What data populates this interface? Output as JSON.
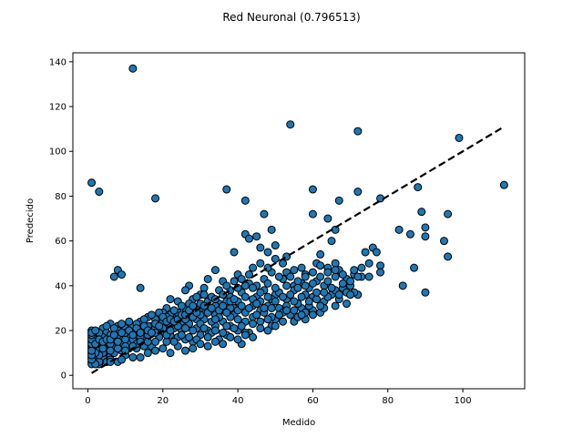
{
  "chart_data": {
    "type": "scatter",
    "title": "Red Neuronal (0.796513)",
    "xlabel": "Medido",
    "ylabel": "Predecido",
    "xlim": [
      -4,
      116.5
    ],
    "ylim": [
      -6,
      144
    ],
    "xticks": [
      0,
      20,
      40,
      60,
      80,
      100
    ],
    "yticks": [
      0,
      20,
      40,
      60,
      80,
      100,
      120,
      140
    ],
    "grid": false,
    "marker_color": "#1f77b4",
    "marker_edge": "#000000",
    "line_color": "#000000",
    "reference_line": {
      "x": [
        1,
        111
      ],
      "y": [
        1,
        111
      ],
      "style": "dashed"
    },
    "points": [
      [
        12,
        137
      ],
      [
        54,
        112
      ],
      [
        72,
        109
      ],
      [
        99,
        106
      ],
      [
        111,
        85
      ],
      [
        1,
        86
      ],
      [
        3,
        82
      ],
      [
        18,
        79
      ],
      [
        37,
        83
      ],
      [
        42,
        78
      ],
      [
        60,
        83
      ],
      [
        72,
        82
      ],
      [
        67,
        78
      ],
      [
        78,
        79
      ],
      [
        88,
        84
      ],
      [
        96,
        72
      ],
      [
        89,
        73
      ],
      [
        90,
        66
      ],
      [
        86,
        63
      ],
      [
        90,
        62
      ],
      [
        83,
        65
      ],
      [
        95,
        60
      ],
      [
        96,
        53
      ],
      [
        87,
        48
      ],
      [
        90,
        37
      ],
      [
        84,
        40
      ],
      [
        78,
        49
      ],
      [
        78,
        46
      ],
      [
        76,
        57
      ],
      [
        77,
        55
      ],
      [
        74,
        55
      ],
      [
        73,
        44
      ],
      [
        75,
        44
      ],
      [
        72,
        36
      ],
      [
        71,
        45
      ],
      [
        66,
        65
      ],
      [
        65,
        60
      ],
      [
        60,
        72
      ],
      [
        64,
        70
      ],
      [
        47,
        72
      ],
      [
        45,
        62
      ],
      [
        49,
        65
      ],
      [
        42,
        63
      ],
      [
        43,
        61
      ],
      [
        39,
        55
      ],
      [
        53,
        53
      ],
      [
        57,
        48
      ],
      [
        62,
        54
      ],
      [
        66,
        50
      ],
      [
        8,
        47
      ],
      [
        7,
        44
      ],
      [
        9,
        45
      ],
      [
        14,
        39
      ],
      [
        46,
        57
      ],
      [
        48,
        55
      ],
      [
        50,
        58
      ],
      [
        55,
        47
      ],
      [
        58,
        45
      ],
      [
        61,
        50
      ],
      [
        64,
        48
      ],
      [
        67,
        47
      ],
      [
        69,
        43
      ],
      [
        70,
        40
      ],
      [
        52,
        43
      ],
      [
        55,
        40
      ],
      [
        58,
        36
      ],
      [
        60,
        35
      ],
      [
        63,
        33
      ],
      [
        66,
        31
      ],
      [
        68,
        39
      ],
      [
        62,
        28
      ],
      [
        57,
        30
      ],
      [
        54,
        27
      ],
      [
        50,
        25
      ],
      [
        60,
        29
      ],
      [
        48,
        31
      ],
      [
        45,
        35
      ],
      [
        43,
        41
      ],
      [
        40,
        45
      ],
      [
        38,
        38
      ],
      [
        36,
        42
      ],
      [
        34,
        47
      ],
      [
        32,
        43
      ],
      [
        31,
        39
      ],
      [
        30,
        36
      ],
      [
        28,
        34
      ],
      [
        27,
        40
      ],
      [
        26,
        38
      ],
      [
        24,
        33
      ],
      [
        22,
        34
      ],
      [
        21,
        30
      ],
      [
        20,
        28
      ],
      [
        35,
        32
      ],
      [
        41,
        37
      ],
      [
        44,
        34
      ],
      [
        47,
        38
      ],
      [
        50,
        36
      ],
      [
        53,
        34
      ],
      [
        56,
        32
      ],
      [
        46,
        29
      ],
      [
        49,
        26
      ],
      [
        42,
        28
      ],
      [
        39,
        30
      ],
      [
        37,
        33
      ],
      [
        34,
        27
      ],
      [
        31,
        29
      ],
      [
        29,
        25
      ],
      [
        27,
        27
      ],
      [
        25,
        24
      ],
      [
        23,
        26
      ],
      [
        21,
        22
      ],
      [
        19,
        24
      ],
      [
        17,
        22
      ],
      [
        15,
        20
      ],
      [
        13,
        19
      ],
      [
        11,
        18
      ],
      [
        9,
        17
      ],
      [
        7,
        16
      ],
      [
        5,
        15
      ],
      [
        3,
        14
      ],
      [
        2,
        12
      ],
      [
        1,
        10
      ],
      [
        1,
        8
      ],
      [
        1,
        6
      ],
      [
        2,
        18
      ],
      [
        1,
        20
      ],
      [
        3,
        17
      ],
      [
        4,
        21
      ],
      [
        5,
        19
      ],
      [
        6,
        23
      ],
      [
        8,
        22
      ],
      [
        10,
        21
      ],
      [
        12,
        20
      ],
      [
        14,
        24
      ],
      [
        16,
        26
      ],
      [
        18,
        25
      ],
      [
        20,
        19
      ],
      [
        22,
        18
      ],
      [
        24,
        17
      ],
      [
        26,
        16
      ],
      [
        28,
        15
      ],
      [
        30,
        18
      ],
      [
        32,
        20
      ],
      [
        34,
        22
      ],
      [
        36,
        24
      ],
      [
        38,
        22
      ],
      [
        40,
        20
      ],
      [
        42,
        24
      ],
      [
        44,
        26
      ],
      [
        33,
        19
      ],
      [
        29,
        21
      ],
      [
        25,
        20
      ],
      [
        21,
        15
      ],
      [
        17,
        13
      ],
      [
        13,
        12
      ],
      [
        9,
        11
      ],
      [
        6,
        9
      ],
      [
        4,
        8
      ],
      [
        2,
        7
      ],
      [
        7,
        13
      ],
      [
        11,
        14
      ],
      [
        15,
        16
      ],
      [
        19,
        17
      ],
      [
        23,
        21
      ],
      [
        27,
        23
      ],
      [
        31,
        25
      ],
      [
        35,
        26
      ],
      [
        39,
        27
      ],
      [
        43,
        19
      ],
      [
        37,
        18
      ],
      [
        41,
        14
      ],
      [
        35,
        16
      ],
      [
        16,
        10
      ],
      [
        20,
        12
      ],
      [
        24,
        13
      ],
      [
        28,
        12
      ],
      [
        10,
        9
      ],
      [
        14,
        8
      ],
      [
        8,
        6
      ],
      [
        5,
        6
      ],
      [
        3,
        5
      ],
      [
        1,
        5
      ],
      [
        1,
        13
      ],
      [
        1,
        15
      ],
      [
        1,
        17
      ],
      [
        2,
        15
      ],
      [
        3,
        11
      ],
      [
        4,
        13
      ],
      [
        5,
        11
      ],
      [
        6,
        14
      ],
      [
        7,
        10
      ],
      [
        8,
        18
      ],
      [
        9,
        14
      ],
      [
        10,
        16
      ],
      [
        11,
        12
      ],
      [
        12,
        16
      ],
      [
        13,
        14
      ],
      [
        14,
        17
      ],
      [
        15,
        13
      ],
      [
        16,
        18
      ],
      [
        18,
        15
      ],
      [
        19,
        20
      ],
      [
        21,
        18
      ],
      [
        22,
        23
      ],
      [
        23,
        15
      ],
      [
        25,
        18
      ],
      [
        26,
        21
      ],
      [
        27,
        17
      ],
      [
        28,
        20
      ],
      [
        29,
        16
      ],
      [
        30,
        23
      ],
      [
        31,
        21
      ],
      [
        32,
        17
      ],
      [
        33,
        24
      ],
      [
        34,
        20
      ],
      [
        36,
        19
      ],
      [
        37,
        22
      ],
      [
        38,
        26
      ],
      [
        39,
        21
      ],
      [
        40,
        25
      ],
      [
        41,
        22
      ],
      [
        42,
        19
      ],
      [
        44,
        23
      ],
      [
        45,
        27
      ],
      [
        46,
        24
      ],
      [
        47,
        28
      ],
      [
        48,
        25
      ],
      [
        49,
        22
      ],
      [
        51,
        30
      ],
      [
        52,
        28
      ],
      [
        53,
        31
      ],
      [
        55,
        33
      ],
      [
        57,
        35
      ],
      [
        59,
        31
      ],
      [
        61,
        34
      ],
      [
        63,
        30
      ],
      [
        65,
        36
      ],
      [
        67,
        34
      ],
      [
        69,
        32
      ],
      [
        71,
        37
      ],
      [
        49,
        34
      ],
      [
        51,
        37
      ],
      [
        53,
        40
      ],
      [
        55,
        38
      ],
      [
        57,
        41
      ],
      [
        59,
        39
      ],
      [
        61,
        42
      ],
      [
        63,
        40
      ],
      [
        45,
        40
      ],
      [
        47,
        43
      ],
      [
        49,
        46
      ],
      [
        51,
        44
      ],
      [
        53,
        46
      ],
      [
        44,
        31
      ],
      [
        46,
        33
      ],
      [
        48,
        41
      ],
      [
        50,
        39
      ],
      [
        42,
        35
      ],
      [
        40,
        33
      ],
      [
        38,
        30
      ],
      [
        36,
        29
      ],
      [
        34,
        31
      ],
      [
        32,
        33
      ],
      [
        30,
        30
      ],
      [
        28,
        29
      ],
      [
        26,
        30
      ],
      [
        24,
        28
      ],
      [
        22,
        27
      ],
      [
        20,
        24
      ],
      [
        18,
        21
      ],
      [
        16,
        22
      ],
      [
        14,
        21
      ],
      [
        12,
        22
      ],
      [
        10,
        19
      ],
      [
        8,
        20
      ],
      [
        6,
        18
      ],
      [
        4,
        17
      ],
      [
        2,
        16
      ],
      [
        1,
        12
      ],
      [
        2,
        9
      ],
      [
        3,
        19
      ],
      [
        4,
        10
      ],
      [
        5,
        22
      ],
      [
        6,
        7
      ],
      [
        7,
        21
      ],
      [
        9,
        23
      ],
      [
        11,
        24
      ],
      [
        13,
        23
      ],
      [
        15,
        25
      ],
      [
        17,
        27
      ],
      [
        19,
        28
      ],
      [
        21,
        26
      ],
      [
        23,
        29
      ],
      [
        25,
        31
      ],
      [
        27,
        32
      ],
      [
        29,
        35
      ],
      [
        31,
        36
      ],
      [
        33,
        35
      ],
      [
        35,
        38
      ],
      [
        37,
        40
      ],
      [
        39,
        42
      ],
      [
        41,
        43
      ],
      [
        43,
        45
      ],
      [
        44,
        48
      ],
      [
        46,
        50
      ],
      [
        48,
        48
      ],
      [
        50,
        52
      ],
      [
        52,
        50
      ],
      [
        54,
        44
      ],
      [
        56,
        42
      ],
      [
        58,
        44
      ],
      [
        60,
        46
      ],
      [
        62,
        44
      ],
      [
        64,
        42
      ],
      [
        66,
        44
      ],
      [
        68,
        45
      ],
      [
        55,
        24
      ],
      [
        58,
        25
      ],
      [
        60,
        27
      ],
      [
        46,
        21
      ],
      [
        44,
        17
      ],
      [
        40,
        16
      ],
      [
        36,
        14
      ],
      [
        32,
        13
      ],
      [
        26,
        11
      ],
      [
        22,
        10
      ],
      [
        18,
        11
      ],
      [
        12,
        8
      ],
      [
        9,
        7
      ],
      [
        6,
        6
      ],
      [
        3,
        6
      ],
      [
        2,
        5
      ],
      [
        30,
        14
      ],
      [
        34,
        15
      ],
      [
        38,
        17
      ],
      [
        42,
        18
      ],
      [
        48,
        20
      ],
      [
        50,
        22
      ],
      [
        52,
        24
      ],
      [
        56,
        26
      ],
      [
        58,
        28
      ],
      [
        62,
        31
      ],
      [
        64,
        35
      ],
      [
        66,
        38
      ],
      [
        68,
        41
      ],
      [
        70,
        42
      ],
      [
        71,
        47
      ],
      [
        72,
        44
      ],
      [
        73,
        48
      ],
      [
        75,
        50
      ],
      [
        66,
        47
      ],
      [
        64,
        46
      ],
      [
        62,
        49
      ],
      [
        60,
        41
      ],
      [
        58,
        40
      ],
      [
        56,
        39
      ],
      [
        54,
        36
      ],
      [
        52,
        35
      ],
      [
        50,
        33
      ],
      [
        48,
        35
      ],
      [
        46,
        37
      ],
      [
        44,
        39
      ],
      [
        42,
        40
      ],
      [
        40,
        39
      ],
      [
        38,
        35
      ],
      [
        36,
        36
      ],
      [
        34,
        34
      ],
      [
        32,
        30
      ],
      [
        30,
        27
      ],
      [
        28,
        26
      ],
      [
        26,
        25
      ],
      [
        24,
        22
      ],
      [
        22,
        20
      ],
      [
        20,
        21
      ],
      [
        18,
        19
      ],
      [
        16,
        15
      ],
      [
        14,
        15
      ],
      [
        12,
        13
      ],
      [
        10,
        13
      ],
      [
        8,
        12
      ],
      [
        6,
        11
      ],
      [
        4,
        12
      ],
      [
        3,
        9
      ],
      [
        2,
        10
      ],
      [
        1,
        7
      ],
      [
        1,
        9
      ],
      [
        1,
        11
      ],
      [
        1,
        14
      ],
      [
        1,
        16
      ],
      [
        1,
        18
      ],
      [
        1,
        19
      ],
      [
        2,
        20
      ],
      [
        2,
        14
      ],
      [
        3,
        16
      ],
      [
        4,
        15
      ],
      [
        5,
        16
      ],
      [
        6,
        16
      ],
      [
        7,
        18
      ],
      [
        8,
        15
      ],
      [
        9,
        19
      ],
      [
        10,
        11
      ],
      [
        11,
        20
      ],
      [
        12,
        18
      ],
      [
        13,
        21
      ],
      [
        14,
        19
      ],
      [
        15,
        22
      ],
      [
        16,
        20
      ],
      [
        17,
        19
      ],
      [
        18,
        23
      ],
      [
        19,
        22
      ],
      [
        20,
        26
      ],
      [
        21,
        24
      ],
      [
        22,
        25
      ],
      [
        23,
        24
      ],
      [
        24,
        25
      ],
      [
        25,
        27
      ],
      [
        26,
        27
      ],
      [
        27,
        29
      ],
      [
        28,
        31
      ],
      [
        29,
        28
      ],
      [
        30,
        32
      ],
      [
        31,
        31
      ],
      [
        32,
        28
      ],
      [
        33,
        30
      ],
      [
        34,
        25
      ],
      [
        35,
        29
      ],
      [
        36,
        31
      ],
      [
        37,
        28
      ],
      [
        38,
        33
      ],
      [
        39,
        34
      ],
      [
        40,
        29
      ],
      [
        41,
        31
      ],
      [
        43,
        30
      ],
      [
        45,
        32
      ],
      [
        47,
        30
      ],
      [
        49,
        30
      ],
      [
        51,
        27
      ],
      [
        53,
        29
      ],
      [
        55,
        29
      ],
      [
        57,
        27
      ],
      [
        59,
        33
      ],
      [
        61,
        37
      ],
      [
        63,
        37
      ],
      [
        65,
        39
      ],
      [
        67,
        36
      ],
      [
        69,
        37
      ],
      [
        70,
        36
      ]
    ]
  }
}
